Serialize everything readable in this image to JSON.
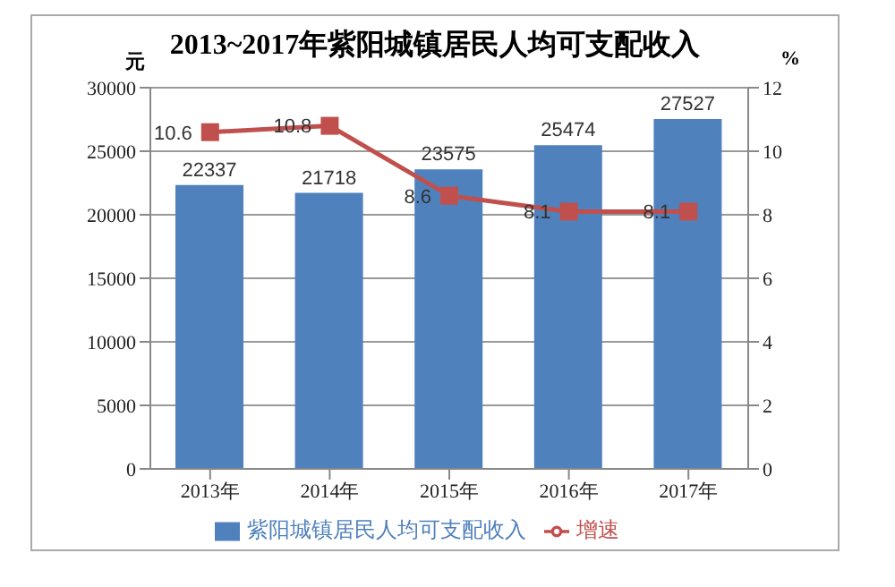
{
  "chart_data": {
    "type": "bar",
    "title": "2013~2017年紫阳城镇居民人均可支配收入",
    "ylabel": "元",
    "y2label": "%",
    "categories": [
      "2013年",
      "2014年",
      "2015年",
      "2016年",
      "2017年"
    ],
    "series": [
      {
        "name": "紫阳城镇居民人均可支配收入",
        "color": "#4f81bd",
        "values": [
          22337,
          21718,
          23575,
          25474,
          27527
        ]
      },
      {
        "name": "增速",
        "type": "line",
        "axis": "y2",
        "color": "#c0504d",
        "marker": "square",
        "values": [
          10.6,
          10.8,
          8.6,
          8.1,
          8.1
        ]
      }
    ],
    "ylim": [
      0,
      30000
    ],
    "yticks": [
      0,
      5000,
      10000,
      15000,
      20000,
      25000,
      30000
    ],
    "y2lim": [
      0,
      12
    ],
    "y2ticks": [
      0,
      2,
      4,
      6,
      8,
      10,
      12
    ],
    "data_labels": true,
    "grid": "y",
    "legend": "bottom"
  }
}
